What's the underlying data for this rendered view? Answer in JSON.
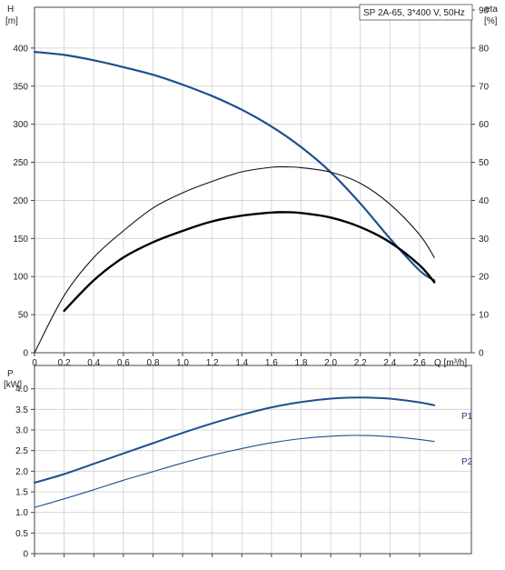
{
  "chart_data": [
    {
      "type": "line",
      "legend_box": "SP 2A-65, 3*400 V, 50Hz",
      "y_left_label": "H",
      "y_left_unit": "[m]",
      "y_right_label": "eta",
      "y_right_unit": "[%]",
      "x_label": "Q [m³/h]",
      "xlim": [
        0,
        2.95
      ],
      "ylim_left": [
        0,
        450
      ],
      "ylim_right": [
        0,
        90
      ],
      "x_ticks": [
        "0",
        "0.2",
        "0.4",
        "0.6",
        "0.8",
        "1.0",
        "1.2",
        "1.4",
        "1.6",
        "1.8",
        "2.0",
        "2.2",
        "2.4",
        "2.6"
      ],
      "y_left_ticks": [
        "0",
        "50",
        "100",
        "150",
        "200",
        "250",
        "300",
        "350",
        "400"
      ],
      "y_right_ticks": [
        "0",
        "10",
        "20",
        "30",
        "40",
        "50",
        "60",
        "70",
        "80",
        "90"
      ],
      "grid": true,
      "series": [
        {
          "axis": "left",
          "color": "#1f4f8f",
          "x": [
            0,
            0.2,
            0.4,
            0.6,
            0.8,
            1.0,
            1.2,
            1.4,
            1.6,
            1.8,
            2.0,
            2.2,
            2.4,
            2.6,
            2.7
          ],
          "y": [
            395,
            391,
            384,
            375,
            365,
            352,
            337,
            319,
            297,
            270,
            237,
            196,
            150,
            108,
            95
          ]
        },
        {
          "axis": "right",
          "color": "#111111",
          "x": [
            0,
            0.2,
            0.4,
            0.6,
            0.8,
            1.0,
            1.2,
            1.4,
            1.6,
            1.7,
            1.8,
            2.0,
            2.2,
            2.4,
            2.6,
            2.7
          ],
          "y": [
            0,
            15,
            25,
            32,
            38,
            42,
            45,
            47.5,
            48.7,
            48.8,
            48.6,
            47.4,
            44.5,
            39,
            31,
            25
          ]
        },
        {
          "axis": "right",
          "color": "#000000",
          "x": [
            0.2,
            0.4,
            0.6,
            0.8,
            1.0,
            1.2,
            1.4,
            1.6,
            1.7,
            1.8,
            2.0,
            2.2,
            2.4,
            2.6,
            2.7
          ],
          "y": [
            11,
            19,
            25,
            29,
            32,
            34.5,
            36,
            36.8,
            36.9,
            36.7,
            35.5,
            33,
            29,
            23,
            18.5
          ]
        }
      ]
    },
    {
      "type": "line",
      "y_label": "P",
      "y_unit": "[kW]",
      "xlim": [
        0,
        2.95
      ],
      "ylim": [
        0,
        4.5
      ],
      "y_ticks": [
        "0",
        "0.5",
        "1.0",
        "1.5",
        "2.0",
        "2.5",
        "3.0",
        "3.5",
        "4.0"
      ],
      "grid": true,
      "series": [
        {
          "name": "P1",
          "color": "#1f4f8f",
          "x": [
            0,
            0.2,
            0.4,
            0.6,
            0.8,
            1.0,
            1.2,
            1.4,
            1.6,
            1.8,
            2.0,
            2.2,
            2.4,
            2.6,
            2.7
          ],
          "y": [
            1.72,
            1.93,
            2.18,
            2.43,
            2.68,
            2.93,
            3.16,
            3.37,
            3.55,
            3.68,
            3.76,
            3.79,
            3.76,
            3.67,
            3.6
          ]
        },
        {
          "name": "P2",
          "color": "#1f4f8f",
          "x": [
            0,
            0.2,
            0.4,
            0.6,
            0.8,
            1.0,
            1.2,
            1.4,
            1.6,
            1.8,
            2.0,
            2.2,
            2.4,
            2.6,
            2.7
          ],
          "y": [
            1.12,
            1.33,
            1.55,
            1.78,
            1.99,
            2.2,
            2.39,
            2.55,
            2.69,
            2.79,
            2.85,
            2.87,
            2.84,
            2.77,
            2.72
          ]
        }
      ]
    }
  ]
}
